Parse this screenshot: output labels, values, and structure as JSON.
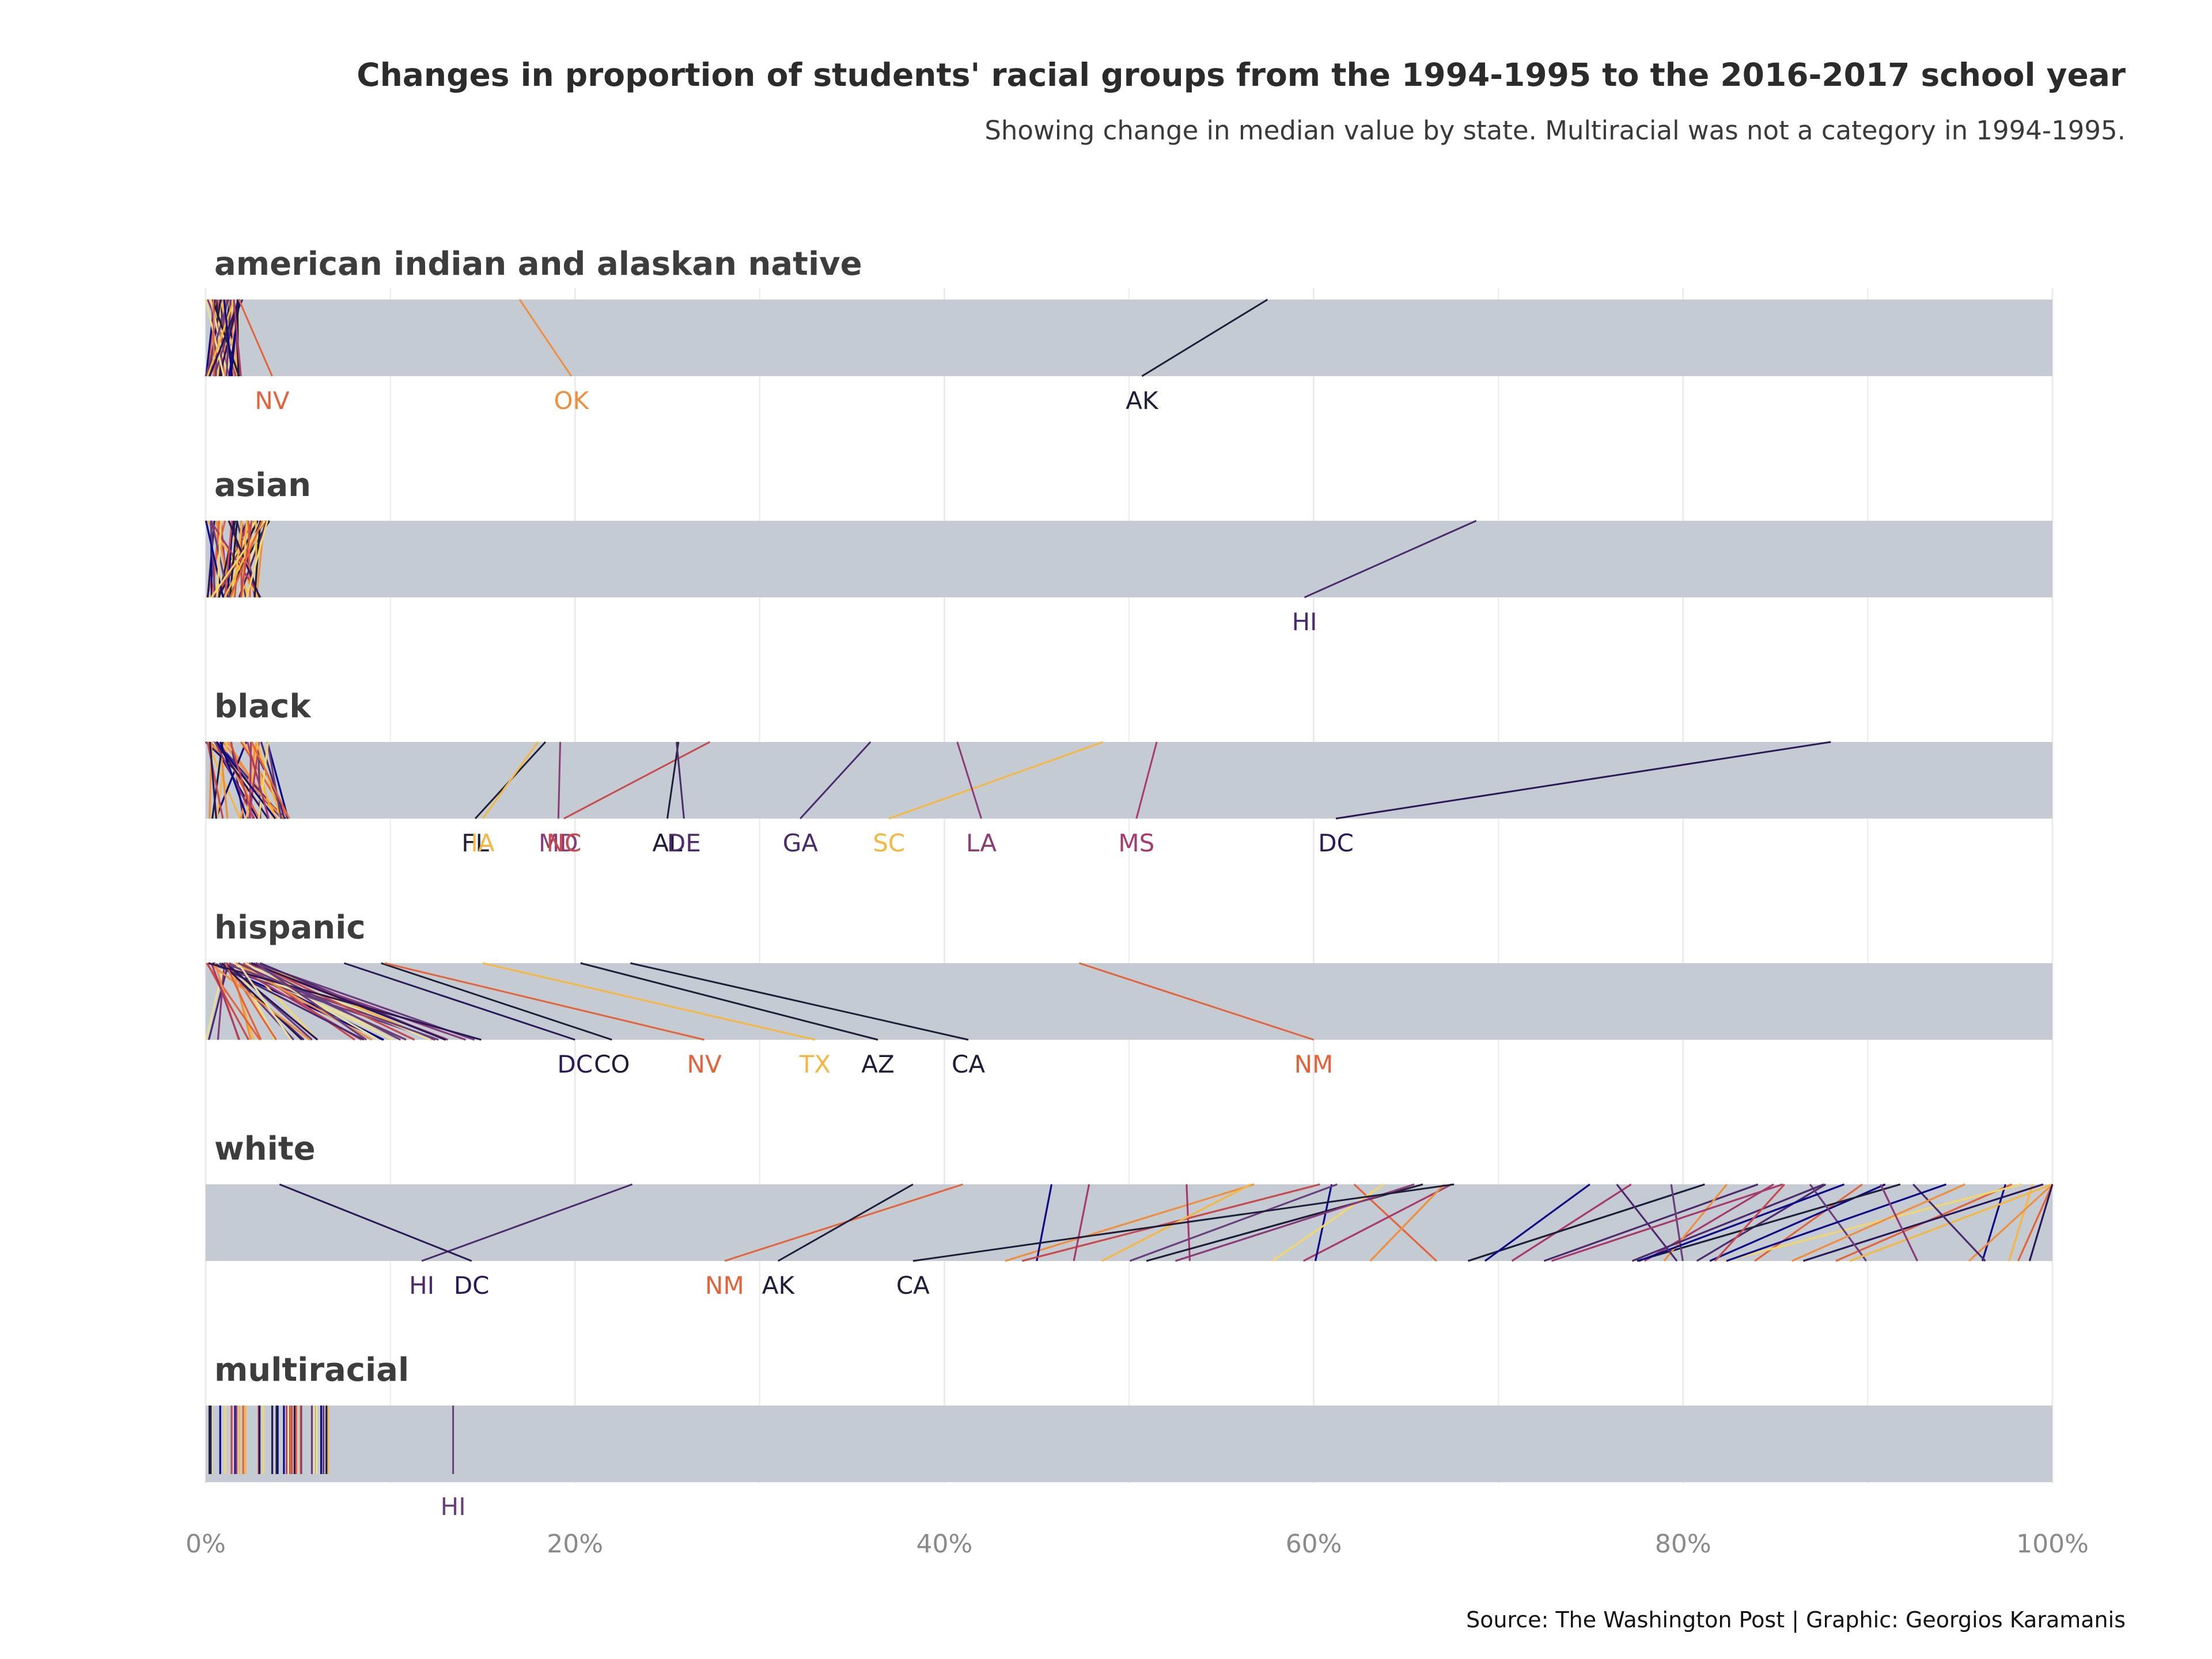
{
  "title": "Changes in proportion of students' racial groups from the 1994-1995 to the 2016-2017 school year",
  "subtitle": "Showing change in median value by state. Multiracial was not a category in 1994-1995.",
  "caption": "Source: The Washington Post | Graphic: Georgios Karamanis",
  "chart_data": {
    "type": "line",
    "x_axis": {
      "tick_labels": [
        "0%",
        "20%",
        "40%",
        "60%",
        "80%",
        "100%"
      ],
      "ticks": [
        0,
        20,
        40,
        60,
        80,
        100
      ],
      "xlim": [
        0,
        100
      ],
      "unit": "percent"
    },
    "encoding": "each line connects a state's 1994-1995 share (top edge of band) to its 2016-2017 share (bottom edge of band)",
    "colors": {
      "band": "#c4cbd3",
      "grid": "#ebebeb",
      "palette": [
        "#0d0887",
        "#2a1858",
        "#4c2a6e",
        "#6a3d7c",
        "#8b3a79",
        "#a8396d",
        "#c84a4e",
        "#e4633a",
        "#f08e3c",
        "#f6b63f",
        "#f4d66a",
        "#e8e09a",
        "#1e1e3a"
      ]
    },
    "panels": [
      {
        "name": "american indian and alaskan native",
        "labeled": [
          {
            "state": "NV",
            "y1995": 3.6,
            "y2017": 1.8,
            "color": "#e4633a"
          },
          {
            "state": "OK",
            "y1995": 19.8,
            "y2017": 17.0,
            "color": "#f08e3c"
          },
          {
            "state": "AK",
            "y1995": 50.7,
            "y2017": 57.5,
            "color": "#1e1e3a"
          }
        ],
        "cluster": {
          "y1995_range": [
            0,
            2.0
          ],
          "y2017_range": [
            0,
            2.0
          ],
          "lines": 50
        }
      },
      {
        "name": "asian",
        "labeled": [
          {
            "state": "HI",
            "y1995": 59.5,
            "y2017": 68.8,
            "color": "#4c2a6e"
          }
        ],
        "cluster": {
          "y1995_range": [
            0,
            3.0
          ],
          "y2017_range": [
            0,
            3.5
          ],
          "lines": 50
        }
      },
      {
        "name": "black",
        "labeled": [
          {
            "state": "FL",
            "y1995": 14.6,
            "y2017": 18.4,
            "color": "#1e1e3a"
          },
          {
            "state": "IA",
            "y1995": 15.0,
            "y2017": 18.0,
            "color": "#f6b63f"
          },
          {
            "state": "MD",
            "y1995": 19.1,
            "y2017": 19.2,
            "color": "#8b3a79"
          },
          {
            "state": "NC",
            "y1995": 19.4,
            "y2017": 27.3,
            "color": "#c84a4e"
          },
          {
            "state": "AL",
            "y1995": 25.0,
            "y2017": 25.6,
            "color": "#1e1e3a"
          },
          {
            "state": "DE",
            "y1995": 25.9,
            "y2017": 25.5,
            "color": "#4c2a6e"
          },
          {
            "state": "GA",
            "y1995": 32.2,
            "y2017": 36.0,
            "color": "#4c2a6e"
          },
          {
            "state": "SC",
            "y1995": 37.0,
            "y2017": 48.6,
            "color": "#f6b63f"
          },
          {
            "state": "LA",
            "y1995": 42.0,
            "y2017": 40.7,
            "color": "#8b3a79"
          },
          {
            "state": "MS",
            "y1995": 50.4,
            "y2017": 51.5,
            "color": "#a8396d"
          },
          {
            "state": "DC",
            "y1995": 61.2,
            "y2017": 88.0,
            "color": "#2a1858"
          }
        ],
        "cluster": {
          "y1995_range": [
            0,
            4.7
          ],
          "y2017_range": [
            0,
            3.5
          ],
          "lines": 40
        }
      },
      {
        "name": "hispanic",
        "labeled": [
          {
            "state": "DC",
            "y1995": 20.0,
            "y2017": 7.5,
            "color": "#2a1858"
          },
          {
            "state": "CO",
            "y1995": 22.0,
            "y2017": 9.5,
            "color": "#1e1e3a"
          },
          {
            "state": "NV",
            "y1995": 27.0,
            "y2017": 9.7,
            "color": "#e4633a"
          },
          {
            "state": "TX",
            "y1995": 33.0,
            "y2017": 15.0,
            "color": "#f6b63f"
          },
          {
            "state": "AZ",
            "y1995": 36.4,
            "y2017": 20.3,
            "color": "#1e1e3a"
          },
          {
            "state": "CA",
            "y1995": 41.3,
            "y2017": 23.0,
            "color": "#1e1e3a"
          },
          {
            "state": "NM",
            "y1995": 60.0,
            "y2017": 47.3,
            "color": "#e4633a"
          }
        ],
        "cluster": {
          "y1995_range": [
            0,
            15.0
          ],
          "y2017_range": [
            0,
            4.0
          ],
          "lines": 45
        }
      },
      {
        "name": "white",
        "labeled": [
          {
            "state": "HI",
            "y1995": 11.7,
            "y2017": 23.1,
            "color": "#4c2a6e"
          },
          {
            "state": "DC",
            "y1995": 14.4,
            "y2017": 4.0,
            "color": "#2a1858"
          },
          {
            "state": "NM",
            "y1995": 28.1,
            "y2017": 41.0,
            "color": "#e4633a"
          },
          {
            "state": "AK",
            "y1995": 31.0,
            "y2017": 38.3,
            "color": "#1e1e3a"
          },
          {
            "state": "CA",
            "y1995": 38.3,
            "y2017": 67.6,
            "color": "#1e1e3a"
          }
        ],
        "cluster": {
          "y1995_range": [
            42,
            99
          ],
          "y2017_range": [
            46,
            100
          ],
          "lines": 44
        }
      },
      {
        "name": "multiracial",
        "labeled": [
          {
            "state": "HI",
            "y1995": 13.4,
            "y2017": 13.4,
            "color": "#6a3d7c"
          }
        ],
        "cluster": {
          "y1995_range": [
            0.2,
            6.8
          ],
          "y2017_range": [
            0.2,
            6.8
          ],
          "lines": 40,
          "vertical_ticks": true
        }
      }
    ]
  }
}
